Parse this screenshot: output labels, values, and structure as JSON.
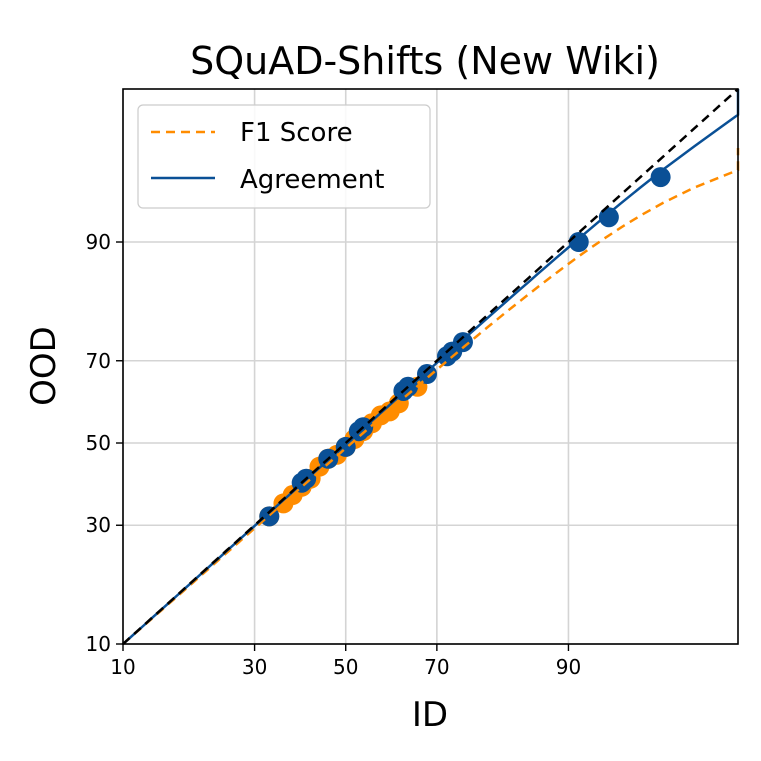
{
  "chart_data": {
    "type": "scatter",
    "title": "SQuAD-Shifts (New Wiki)",
    "xlabel": "ID",
    "ylabel": "OOD",
    "xlim": [
      10,
      100
    ],
    "ylim": [
      10,
      100
    ],
    "scale": "probit",
    "xticks": [
      10,
      30,
      50,
      70,
      90
    ],
    "yticks": [
      10,
      30,
      50,
      70,
      90
    ],
    "grid": true,
    "legend_position": "top-left",
    "reference_line": {
      "style": "dashed",
      "color": "#000000",
      "points": [
        [
          10,
          10
        ],
        [
          100,
          100
        ]
      ]
    },
    "series": [
      {
        "name": "F1 Score",
        "color": "#ff8c00",
        "line_style": "dashed",
        "fit_line": [
          [
            10,
            10
          ],
          [
            100,
            97
          ]
        ],
        "x": [
          33,
          36,
          38,
          40,
          42,
          44,
          46,
          48,
          50,
          52,
          54,
          56,
          58,
          60,
          62,
          66
        ],
        "y": [
          32,
          35,
          37,
          39,
          41,
          44,
          46,
          47,
          49,
          51,
          53,
          55,
          57,
          58,
          60,
          64
        ]
      },
      {
        "name": "Agreement",
        "color": "#0a5096",
        "line_style": "solid",
        "fit_line": [
          [
            10,
            10
          ],
          [
            100,
            99.3
          ]
        ],
        "x": [
          33,
          40,
          41,
          46,
          50,
          53,
          54,
          63,
          64,
          68,
          72,
          73,
          75,
          91,
          93.5,
          96.5
        ],
        "y": [
          32,
          40,
          41,
          46,
          49,
          53,
          54,
          63,
          64,
          67,
          71,
          72,
          74,
          90,
          92.5,
          95.5
        ]
      }
    ]
  }
}
